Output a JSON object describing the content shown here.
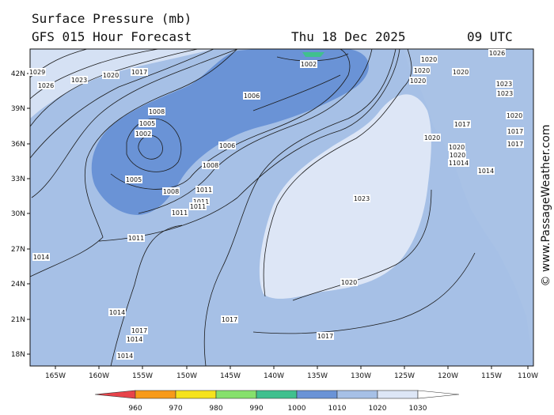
{
  "header": {
    "title": "Surface Pressure (mb)",
    "subtitle": "GFS 015 Hour Forecast",
    "date": "Thu 18 Dec 2025",
    "time": "09 UTC"
  },
  "watermark": "© www.PassageWeather.com",
  "lat_ticks": [
    "42N",
    "39N",
    "36N",
    "33N",
    "30N",
    "27N",
    "24N",
    "21N",
    "18N"
  ],
  "lon_ticks": [
    "165W",
    "160W",
    "155W",
    "150W",
    "145W",
    "140W",
    "135W",
    "130W",
    "125W",
    "120W",
    "115W",
    "110W"
  ],
  "legend": {
    "ticks": [
      "960",
      "970",
      "980",
      "990",
      "1000",
      "1010",
      "1020",
      "1030"
    ],
    "colors": [
      "#e8434a",
      "#f79a1a",
      "#f5e21c",
      "#86e06c",
      "#40c08e",
      "#6a93d6",
      "#a6c0e6",
      "#dde6f6"
    ]
  },
  "fill_colors": {
    "c1020": "#a6c0e6",
    "c1010": "#6a93d6",
    "c1030": "#dde6f6",
    "c1000": "#40c08e"
  },
  "contour_labels": [
    {
      "text": "1029"
    },
    {
      "text": "1026"
    },
    {
      "text": "1023"
    },
    {
      "text": "1020"
    },
    {
      "text": "1017"
    },
    {
      "text": "1002"
    },
    {
      "text": "1006"
    },
    {
      "text": "1008"
    },
    {
      "text": "1005"
    },
    {
      "text": "1002"
    },
    {
      "text": "1006"
    },
    {
      "text": "1008"
    },
    {
      "text": "1005"
    },
    {
      "text": "1008"
    },
    {
      "text": "1011"
    },
    {
      "text": "1011"
    },
    {
      "text": "1011"
    },
    {
      "text": "1011"
    },
    {
      "text": "1011"
    },
    {
      "text": "1014"
    },
    {
      "text": "1023"
    },
    {
      "text": "1020"
    },
    {
      "text": "1014"
    },
    {
      "text": "1017"
    },
    {
      "text": "1014"
    },
    {
      "text": "1014"
    },
    {
      "text": "1017"
    },
    {
      "text": "1017"
    },
    {
      "text": "1020"
    },
    {
      "text": "1020"
    },
    {
      "text": "1020"
    },
    {
      "text": "1020"
    },
    {
      "text": "1020"
    },
    {
      "text": "1017"
    },
    {
      "text": "1020"
    },
    {
      "text": "1020"
    },
    {
      "text": "1020"
    },
    {
      "text": "1014"
    },
    {
      "text": "1014"
    },
    {
      "text": "1023"
    },
    {
      "text": "1020"
    },
    {
      "text": "1017"
    },
    {
      "text": "1017"
    },
    {
      "text": "1026"
    },
    {
      "text": "1023"
    }
  ]
}
